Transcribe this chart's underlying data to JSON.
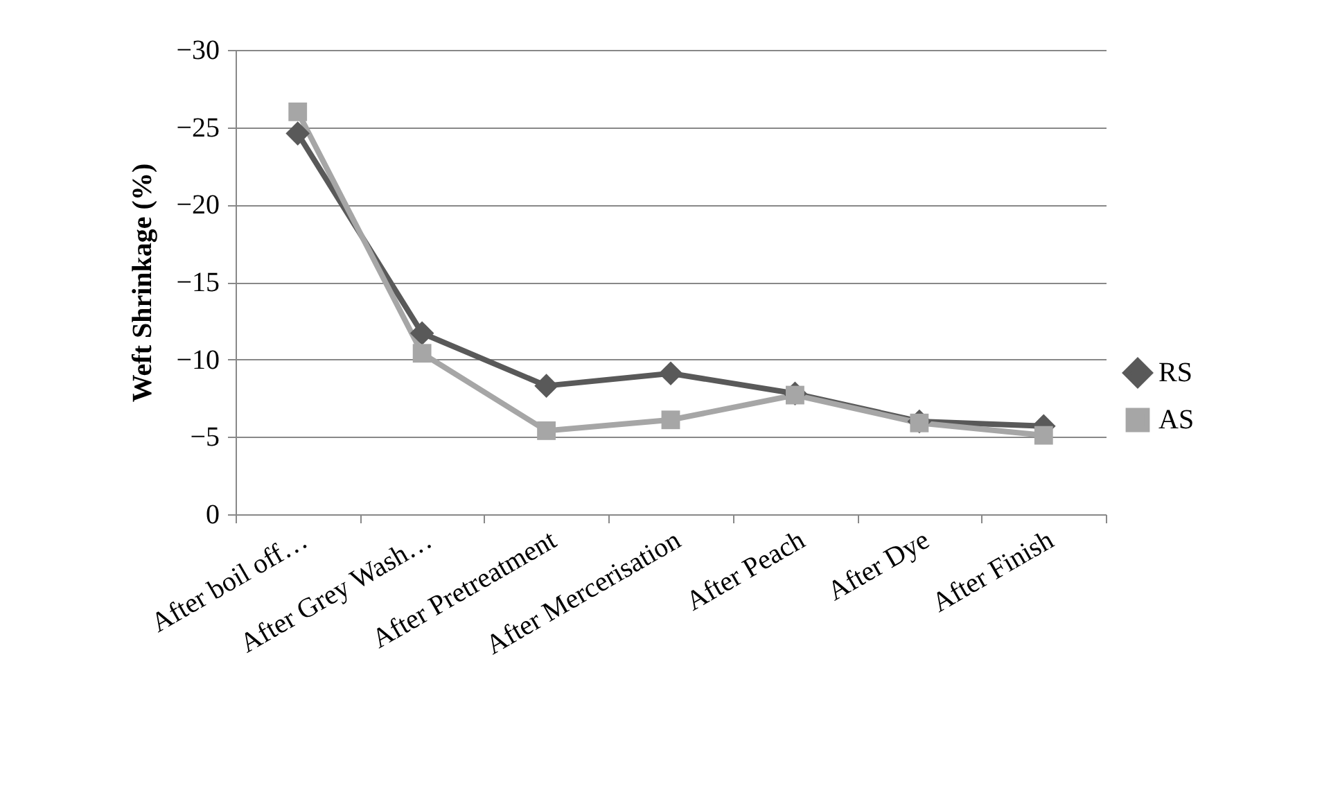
{
  "chart_data": {
    "type": "line",
    "ylabel": "Weft Shrinkage (%)",
    "categories": [
      "After boil off…",
      "After Grey Wash…",
      "After Pretreatment",
      "After Mercerisation",
      "After Peach",
      "After Dye",
      "After Finish"
    ],
    "series": [
      {
        "name": "RS",
        "color": "#595959",
        "marker": "diamond",
        "values": [
          -24.6,
          -11.7,
          -8.3,
          -9.1,
          -7.8,
          -6.0,
          -5.7
        ]
      },
      {
        "name": "AS",
        "color": "#a6a6a6",
        "marker": "square",
        "values": [
          -26.0,
          -10.4,
          -5.4,
          -6.1,
          -7.7,
          -5.9,
          -5.1
        ]
      }
    ],
    "ylim": [
      0,
      -30
    ],
    "yticks": [
      0,
      -5,
      -10,
      -15,
      -20,
      -25,
      -30
    ],
    "grid": "y",
    "legend": "right",
    "line_style": "solid"
  }
}
